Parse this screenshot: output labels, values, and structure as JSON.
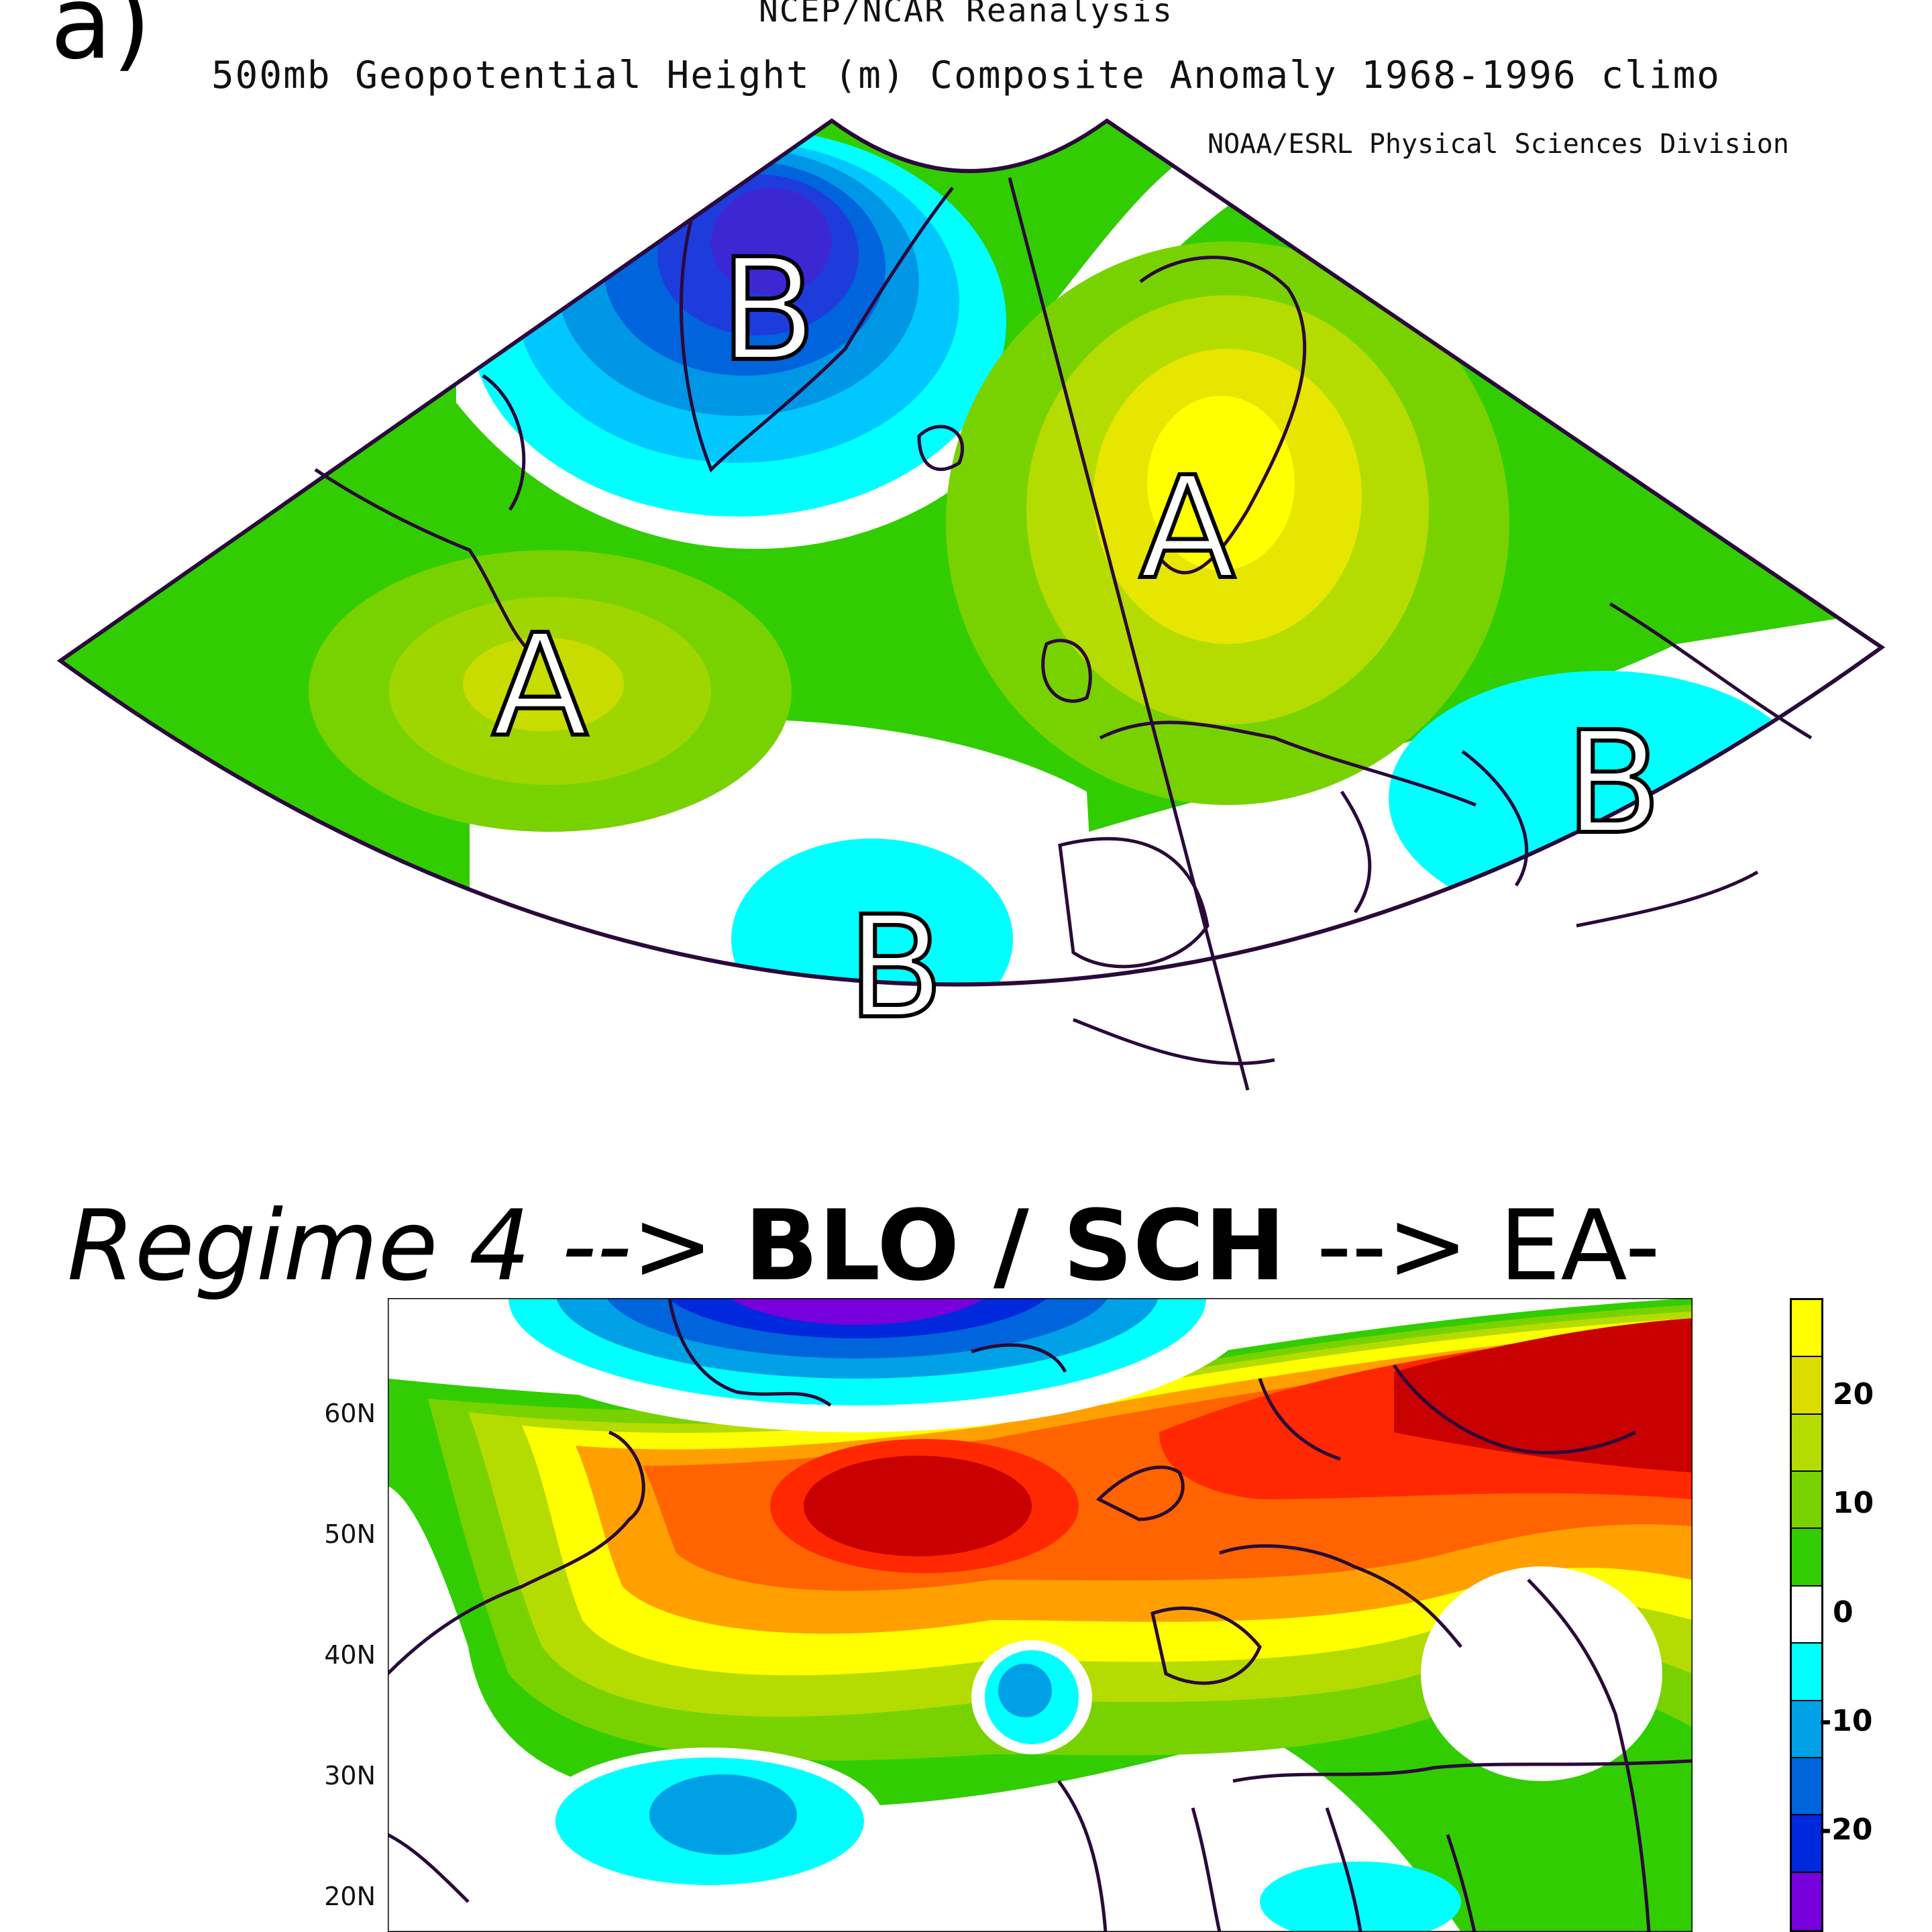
{
  "top_panel": {
    "panel_letter": "a)",
    "title_line1": "NCEP/NCAR Reanalysis",
    "title_line2": "500mb Geopotential Height (m) Composite Anomaly 1968-1996 climo",
    "credit": "NOAA/ESRL Physical Sciences Division",
    "labels": [
      "B",
      "A",
      "A",
      "B",
      "B"
    ]
  },
  "regime_caption": {
    "prefix": "Regime 4 --> ",
    "bold": "BLO / SCH",
    "suffix": " --> EA-"
  },
  "bottom_panel": {
    "lat_labels": [
      "60N",
      "50N",
      "40N",
      "30N",
      "20N"
    ],
    "colorbar_labels": [
      "20",
      "10",
      "0",
      "-10",
      "-20"
    ],
    "colorbar_colors": [
      "#ffff00",
      "#dcdc00",
      "#b4dc00",
      "#78d200",
      "#32cd00",
      "#ffffff",
      "#00ffff",
      "#00a0e6",
      "#0064dc",
      "#0028dc",
      "#7800dc"
    ]
  }
}
